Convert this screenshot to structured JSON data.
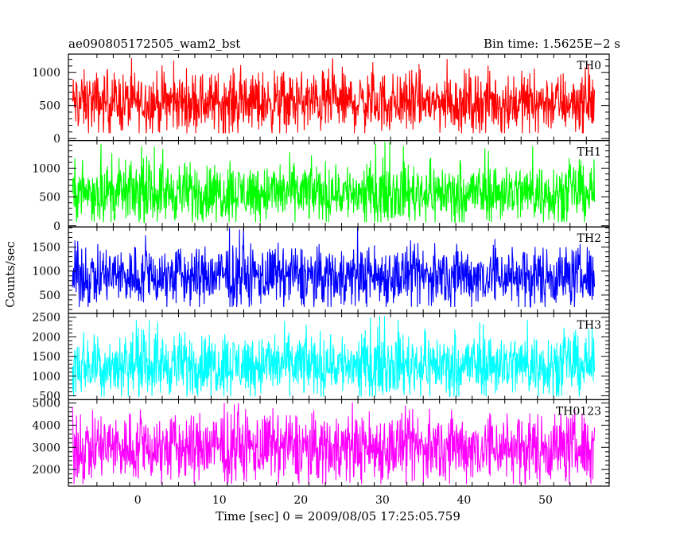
{
  "chart_data": {
    "type": "line",
    "title_left": "ae090805172505_wam2_bst",
    "title_right": "Bin time: 1.5625E−2 s",
    "xlabel": "Time [sec] 0 = 2009/08/05 17:25:05.759",
    "ylabel": "Counts/sec",
    "xlim": [
      -8.5,
      57.8
    ],
    "x_data_range": [
      -8.0,
      56.0
    ],
    "x_ticks": [
      0,
      10,
      20,
      30,
      40,
      50
    ],
    "x_tick_labels": [
      "0",
      "10",
      "20",
      "30",
      "40",
      "50"
    ],
    "bin_time_s": 0.015625,
    "grid": false,
    "panels": [
      {
        "name": "TH0",
        "color": "#ff0000",
        "ylim": [
          -30,
          1280
        ],
        "y_ticks": [
          0,
          500,
          1000
        ],
        "y_tick_labels": [
          "0",
          "500",
          "1000"
        ],
        "approx_mean": 550,
        "approx_min": 80,
        "approx_max": 1280
      },
      {
        "name": "TH1",
        "color": "#00ff00",
        "ylim": [
          -20,
          1480
        ],
        "y_ticks": [
          0,
          500,
          1000
        ],
        "y_tick_labels": [
          "0",
          "500",
          "1000"
        ],
        "approx_mean": 580,
        "approx_min": 60,
        "approx_max": 1500
      },
      {
        "name": "TH2",
        "color": "#0000ff",
        "ylim": [
          120,
          1920
        ],
        "y_ticks": [
          500,
          1000,
          1500
        ],
        "y_tick_labels": [
          "500",
          "1000",
          "1500"
        ],
        "approx_mean": 900,
        "approx_min": 250,
        "approx_max": 1920
      },
      {
        "name": "TH3",
        "color": "#00ffff",
        "ylim": [
          400,
          2600
        ],
        "y_ticks": [
          500,
          1000,
          1500,
          2000,
          2500
        ],
        "y_tick_labels": [
          "500",
          "1000",
          "1500",
          "2000",
          "2500"
        ],
        "approx_mean": 1300,
        "approx_min": 480,
        "approx_max": 2600
      },
      {
        "name": "TH0123",
        "color": "#ff00ff",
        "ylim": [
          1250,
          5150
        ],
        "y_ticks": [
          2000,
          3000,
          4000,
          5000
        ],
        "y_tick_labels": [
          "2000",
          "3000",
          "4000",
          "5000"
        ],
        "approx_mean": 3000,
        "approx_min": 1350,
        "approx_max": 5050
      }
    ]
  }
}
